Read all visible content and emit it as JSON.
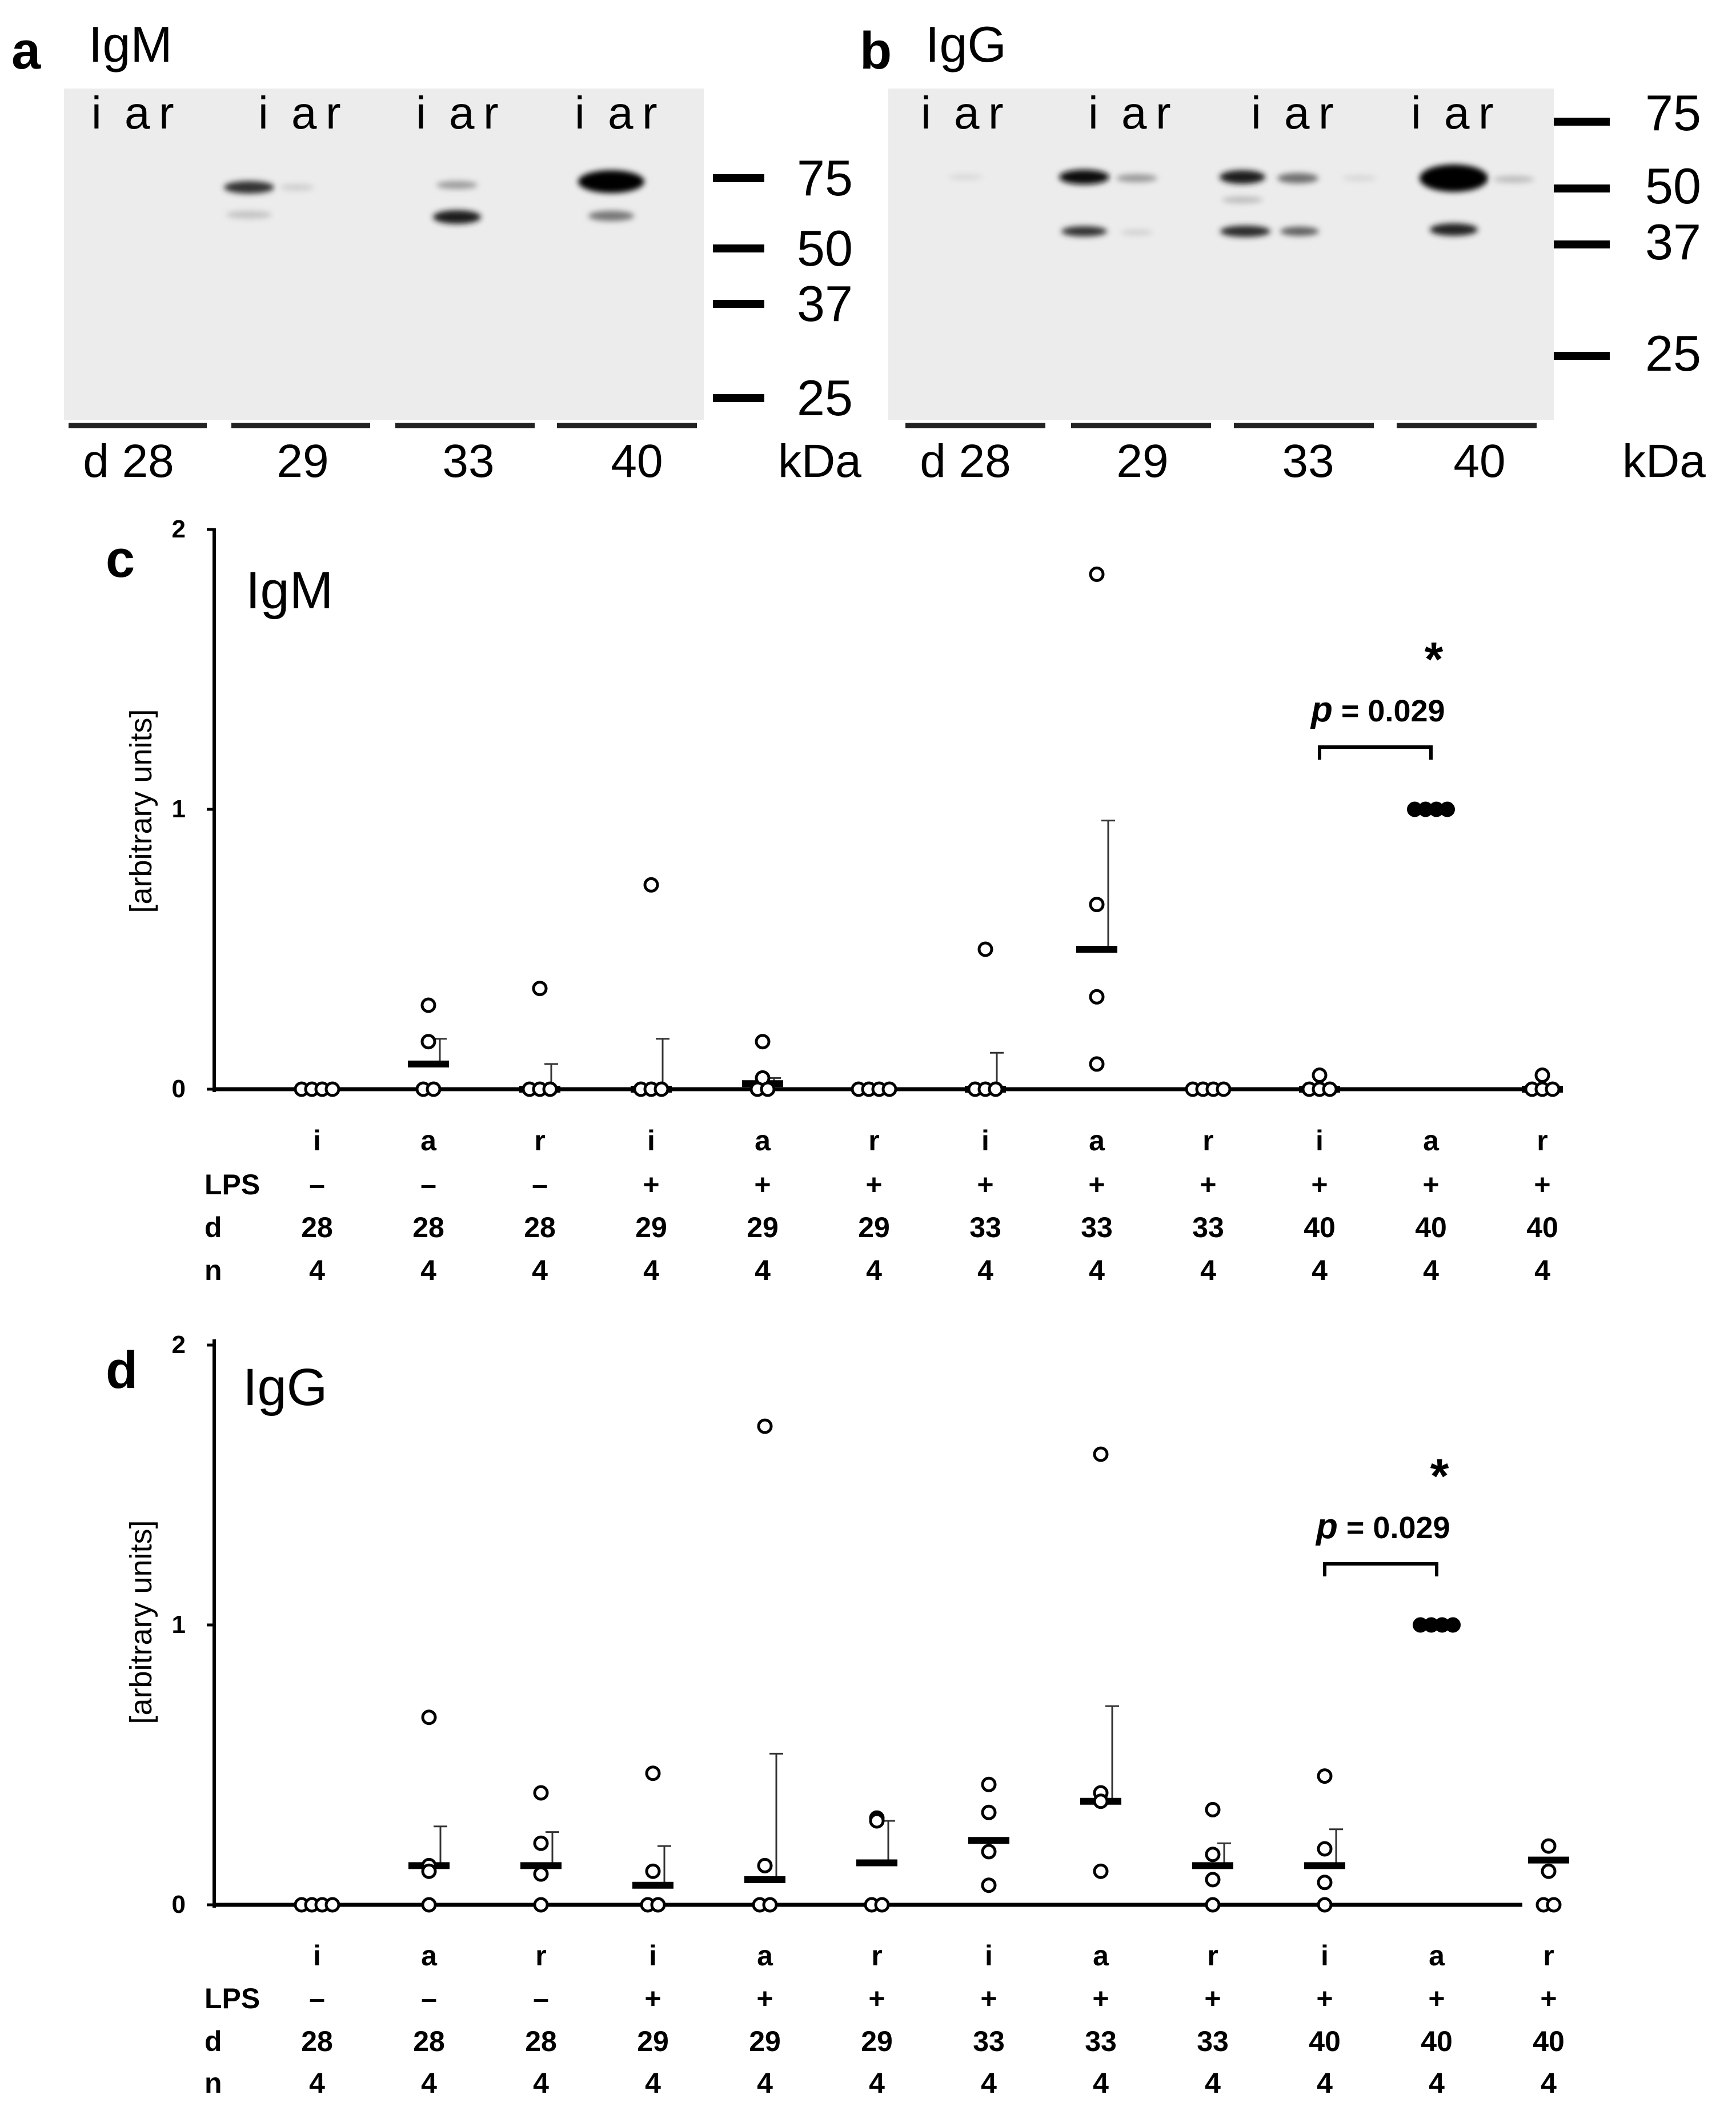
{
  "panels": {
    "a": {
      "letter": "a",
      "title": "IgM",
      "lanes": [
        "i",
        "a",
        "r"
      ],
      "days": [
        "d 28",
        "29",
        "33",
        "40"
      ],
      "markers": [
        "75",
        "50",
        "37",
        "25"
      ],
      "unit": "kDa"
    },
    "b": {
      "letter": "b",
      "title": "IgG",
      "lanes": [
        "i",
        "a",
        "r"
      ],
      "days": [
        "d 28",
        "29",
        "33",
        "40"
      ],
      "markers": [
        "75",
        "50",
        "37",
        "25"
      ],
      "unit": "kDa"
    }
  },
  "chart_data": [
    {
      "type": "scatter",
      "panel_letter": "c",
      "title": "IgM",
      "ylabel": "[arbitrary units]",
      "xlabel": "",
      "ylim": [
        0,
        2
      ],
      "yticks": [
        "0",
        "1",
        "2"
      ],
      "row_labels": [
        "LPS",
        "d",
        "n"
      ],
      "categories": [
        "i",
        "a",
        "r",
        "i",
        "a",
        "r",
        "i",
        "a",
        "r",
        "i",
        "a",
        "r"
      ],
      "lps": [
        "–",
        "–",
        "–",
        "+",
        "+",
        "+",
        "+",
        "+",
        "+",
        "+",
        "+",
        "+"
      ],
      "day": [
        "28",
        "28",
        "28",
        "29",
        "29",
        "29",
        "33",
        "33",
        "33",
        "40",
        "40",
        "40"
      ],
      "n": [
        "4",
        "4",
        "4",
        "4",
        "4",
        "4",
        "4",
        "4",
        "4",
        "4",
        "4",
        "4"
      ],
      "means": [
        0,
        0.09,
        0,
        0,
        0.02,
        0,
        0,
        0.5,
        0,
        0,
        1,
        0
      ],
      "errors": [
        0,
        0.09,
        0.09,
        0.18,
        0.02,
        0,
        0.13,
        0.46,
        0,
        0,
        0,
        0
      ],
      "points": [
        [
          0,
          0,
          0,
          0
        ],
        [
          0.3,
          0.17,
          0,
          0
        ],
        [
          0.36,
          0,
          0,
          0
        ],
        [
          0.73,
          0,
          0,
          0
        ],
        [
          0.17,
          0.04,
          0,
          0
        ],
        [
          0,
          0,
          0,
          0
        ],
        [
          0.5,
          0,
          0,
          0
        ],
        [
          1.84,
          0.66,
          0.33,
          0.09
        ],
        [
          0,
          0,
          0,
          0
        ],
        [
          0.05,
          0,
          0,
          0
        ],
        [
          1,
          1,
          1,
          1
        ],
        [
          0.05,
          0,
          0,
          0
        ]
      ],
      "filled_category": 10,
      "annotation": {
        "p_label": "p",
        "p_value": "= 0.029",
        "star": "*",
        "from": 9,
        "to": 10
      }
    },
    {
      "type": "scatter",
      "panel_letter": "d",
      "title": "IgG",
      "ylabel": "[arbitrary units]",
      "xlabel": "",
      "ylim": [
        0,
        2
      ],
      "yticks": [
        "0",
        "1",
        "2"
      ],
      "row_labels": [
        "LPS",
        "d",
        "n"
      ],
      "categories": [
        "i",
        "a",
        "r",
        "i",
        "a",
        "r",
        "i",
        "a",
        "r",
        "i",
        "a",
        "r"
      ],
      "lps": [
        "–",
        "–",
        "–",
        "+",
        "+",
        "+",
        "+",
        "+",
        "+",
        "+",
        "+",
        "+"
      ],
      "day": [
        "28",
        "28",
        "28",
        "29",
        "29",
        "29",
        "33",
        "33",
        "33",
        "40",
        "40",
        "40"
      ],
      "n": [
        "4",
        "4",
        "4",
        "4",
        "4",
        "4",
        "4",
        "4",
        "4",
        "4",
        "4",
        "4"
      ],
      "means": [
        0,
        0.14,
        0.14,
        0.07,
        0.09,
        0.15,
        0.23,
        0.37,
        0.14,
        0.14,
        1,
        0.16
      ],
      "errors": [
        0,
        0.14,
        0.12,
        0.14,
        0.45,
        0.15,
        0,
        0.34,
        0.08,
        0.13,
        0,
        0
      ],
      "points": [
        [
          0,
          0,
          0,
          0
        ],
        [
          0.67,
          0.14,
          0.12,
          0
        ],
        [
          0.4,
          0.22,
          0.11,
          0
        ],
        [
          0.47,
          0.12,
          0,
          0
        ],
        [
          1.71,
          0.14,
          0,
          0
        ],
        [
          0.31,
          0.3,
          0,
          0
        ],
        [
          0.43,
          0.33,
          0.19,
          0.07
        ],
        [
          1.61,
          0.4,
          0.37,
          0.12
        ],
        [
          0.34,
          0.18,
          0.09,
          0
        ],
        [
          0.46,
          0.2,
          0.08,
          0
        ],
        [
          1,
          1,
          1,
          1
        ],
        [
          0.21,
          0.12,
          0,
          0
        ]
      ],
      "filled_category": 10,
      "annotation": {
        "p_label": "p",
        "p_value": "= 0.029",
        "star": "*",
        "from": 9,
        "to": 10
      }
    }
  ]
}
